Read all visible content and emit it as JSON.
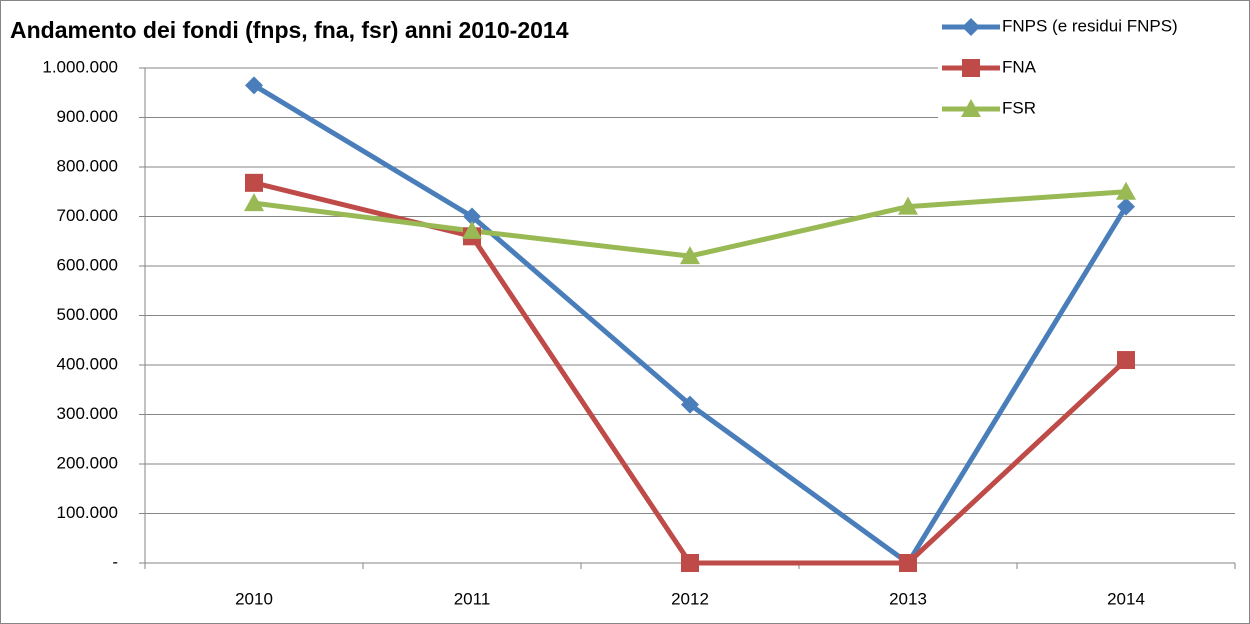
{
  "chart_data": {
    "type": "line",
    "title": "Andamento dei fondi (fnps, fna, fsr) anni 2010-2014",
    "categories": [
      "2010",
      "2011",
      "2012",
      "2013",
      "2014"
    ],
    "series": [
      {
        "name": "FNPS (e residui FNPS)",
        "color": "#4a7ebb",
        "marker": "diamond",
        "values": [
          965000,
          700000,
          320000,
          0,
          720000
        ]
      },
      {
        "name": "FNA",
        "color": "#be4b48",
        "marker": "square",
        "values": [
          768000,
          660000,
          0,
          0,
          410000
        ]
      },
      {
        "name": "FSR",
        "color": "#98b954",
        "marker": "triangle",
        "values": [
          727000,
          671000,
          620000,
          720000,
          750000
        ]
      }
    ],
    "ylim": [
      0,
      1000000
    ],
    "yticks": [
      {
        "value": 0,
        "label": "-"
      },
      {
        "value": 100000,
        "label": "100.000"
      },
      {
        "value": 200000,
        "label": "200.000"
      },
      {
        "value": 300000,
        "label": "300.000"
      },
      {
        "value": 400000,
        "label": "400.000"
      },
      {
        "value": 500000,
        "label": "500.000"
      },
      {
        "value": 600000,
        "label": "600.000"
      },
      {
        "value": 700000,
        "label": "700.000"
      },
      {
        "value": 800000,
        "label": "800.000"
      },
      {
        "value": 900000,
        "label": "900.000"
      },
      {
        "value": 1000000,
        "label": "1.000.000"
      }
    ],
    "grid": true,
    "legend": "top-right"
  }
}
